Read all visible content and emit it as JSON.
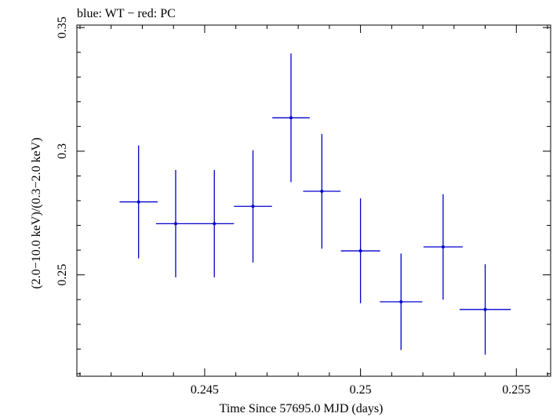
{
  "chart_data": {
    "type": "scatter",
    "title": "blue: WT − red: PC",
    "xlabel": "Time Since 57695.0 MJD (days)",
    "ylabel": "(2.0−10.0 keV)/(0.3−2.0 keV)",
    "xlim": [
      0.2409,
      0.2561
    ],
    "ylim": [
      0.209,
      0.351
    ],
    "xticks": [
      {
        "value": 0.245,
        "label": "0.245"
      },
      {
        "value": 0.25,
        "label": "0.25"
      },
      {
        "value": 0.255,
        "label": "0.255"
      }
    ],
    "yticks": [
      {
        "value": 0.25,
        "label": "0.25"
      },
      {
        "value": 0.3,
        "label": "0.3"
      },
      {
        "value": 0.35,
        "label": "0.35"
      }
    ],
    "color": "#0000cc",
    "series": [
      {
        "points": [
          {
            "x": 0.24288,
            "y": 0.2795,
            "xerr": 0.00061,
            "yerr": 0.0228
          },
          {
            "x": 0.24407,
            "y": 0.2707,
            "xerr": 0.00063,
            "yerr": 0.0217
          },
          {
            "x": 0.24531,
            "y": 0.2707,
            "xerr": 0.00063,
            "yerr": 0.0217
          },
          {
            "x": 0.24655,
            "y": 0.2777,
            "xerr": 0.00061,
            "yerr": 0.0227
          },
          {
            "x": 0.24777,
            "y": 0.3135,
            "xerr": 0.0006,
            "yerr": 0.026
          },
          {
            "x": 0.24876,
            "y": 0.2838,
            "xerr": 0.0006,
            "yerr": 0.0232
          },
          {
            "x": 0.25,
            "y": 0.2597,
            "xerr": 0.00063,
            "yerr": 0.0212
          },
          {
            "x": 0.2513,
            "y": 0.2391,
            "xerr": 0.00068,
            "yerr": 0.0195
          },
          {
            "x": 0.25265,
            "y": 0.2613,
            "xerr": 0.00063,
            "yerr": 0.0213
          },
          {
            "x": 0.254,
            "y": 0.236,
            "xerr": 0.00082,
            "yerr": 0.0183
          }
        ]
      }
    ]
  }
}
